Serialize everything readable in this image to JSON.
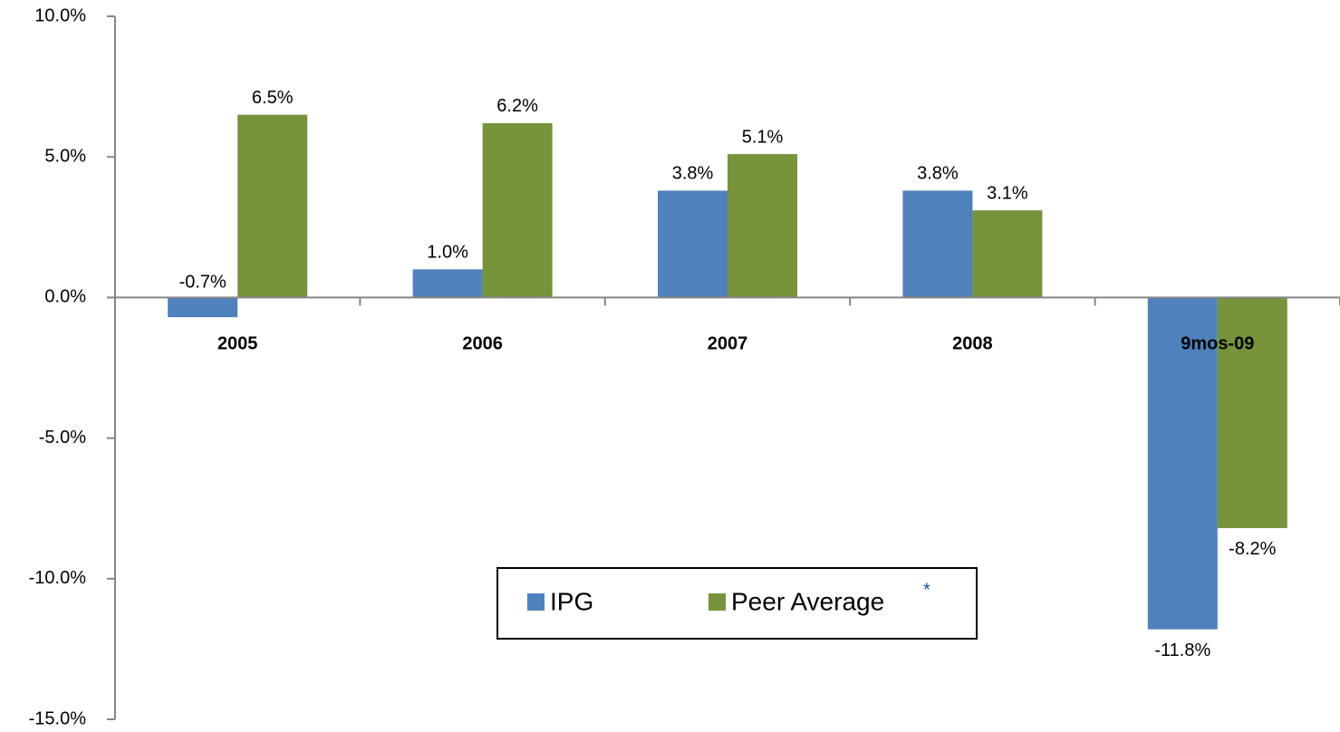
{
  "chart_data": {
    "type": "bar",
    "categories": [
      "2005",
      "2006",
      "2007",
      "2008",
      "9mos-09"
    ],
    "series": [
      {
        "name": "IPG",
        "color": "#4f81bd",
        "values": [
          -0.7,
          1.0,
          3.8,
          3.8,
          -11.8
        ],
        "value_labels": [
          "-0.7%",
          "1.0%",
          "3.8%",
          "3.8%",
          "-11.8%"
        ]
      },
      {
        "name": "Peer Average",
        "color": "#77933c",
        "values": [
          6.5,
          6.2,
          5.1,
          3.1,
          -8.2
        ],
        "value_labels": [
          "6.5%",
          "6.2%",
          "5.1%",
          "3.1%",
          "-8.2%"
        ]
      }
    ],
    "legend_note": "*",
    "ylim": [
      -15,
      10
    ],
    "yticks": [
      {
        "value": -15,
        "label": "-15.0%"
      },
      {
        "value": -10,
        "label": "-10.0%"
      },
      {
        "value": -5,
        "label": "-5.0%"
      },
      {
        "value": 0,
        "label": "0.0%"
      },
      {
        "value": 5,
        "label": "5.0%"
      },
      {
        "value": 10,
        "label": "10.0%"
      }
    ],
    "grid": false,
    "legend": "bottom"
  }
}
